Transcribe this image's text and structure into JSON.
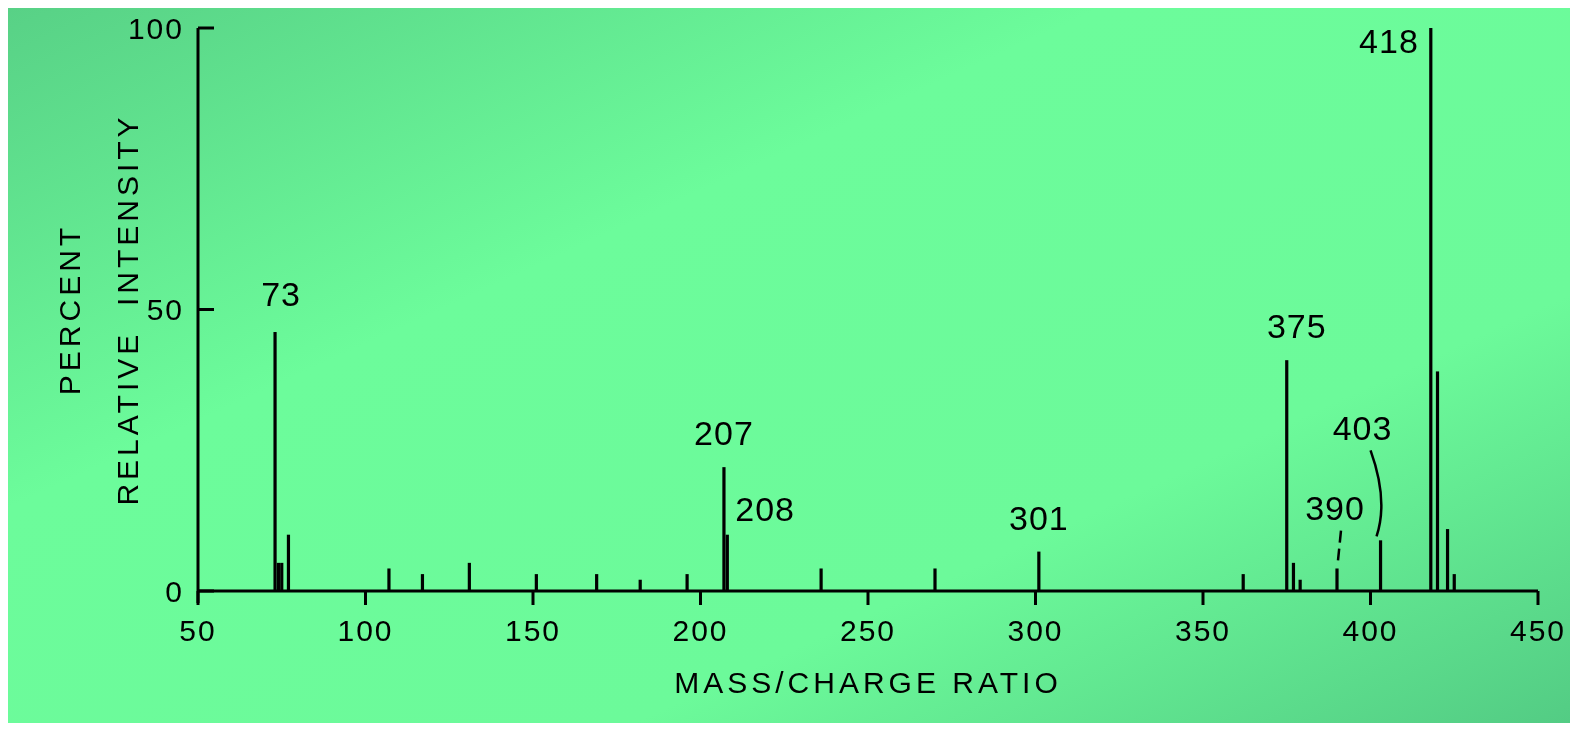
{
  "chart_data": {
    "type": "bar",
    "xlabel": "MASS/CHARGE RATIO",
    "ylabel": "PERCENT\nRELATIVE  INTENSITY",
    "x": [
      73,
      74,
      75,
      77,
      107,
      117,
      131,
      151,
      169,
      182,
      196,
      207,
      208,
      236,
      270,
      301,
      362,
      375,
      377,
      379,
      390,
      403,
      418,
      420,
      423,
      425
    ],
    "values": [
      46,
      5,
      5,
      10,
      4,
      3,
      5,
      3,
      3,
      2,
      3,
      22,
      10,
      4,
      4,
      7,
      3,
      41,
      5,
      2,
      4,
      9,
      100,
      39,
      11,
      3
    ],
    "color": "#000000",
    "xlim": [
      50,
      450
    ],
    "xticks": [
      50,
      100,
      150,
      200,
      250,
      300,
      350,
      400,
      450
    ],
    "ylim": [
      0,
      100
    ],
    "yticks": [
      0,
      50,
      100
    ],
    "annotations": [
      {
        "text": "73",
        "x": 73,
        "y": 46
      },
      {
        "text": "207",
        "x": 207,
        "y": 22
      },
      {
        "text": "208",
        "x": 208,
        "y": 10
      },
      {
        "text": "301",
        "x": 301,
        "y": 7
      },
      {
        "text": "375",
        "x": 375,
        "y": 41
      },
      {
        "text": "390",
        "x": 390,
        "y": 4
      },
      {
        "text": "403",
        "x": 403,
        "y": 9
      },
      {
        "text": "418",
        "x": 418,
        "y": 100
      }
    ]
  }
}
